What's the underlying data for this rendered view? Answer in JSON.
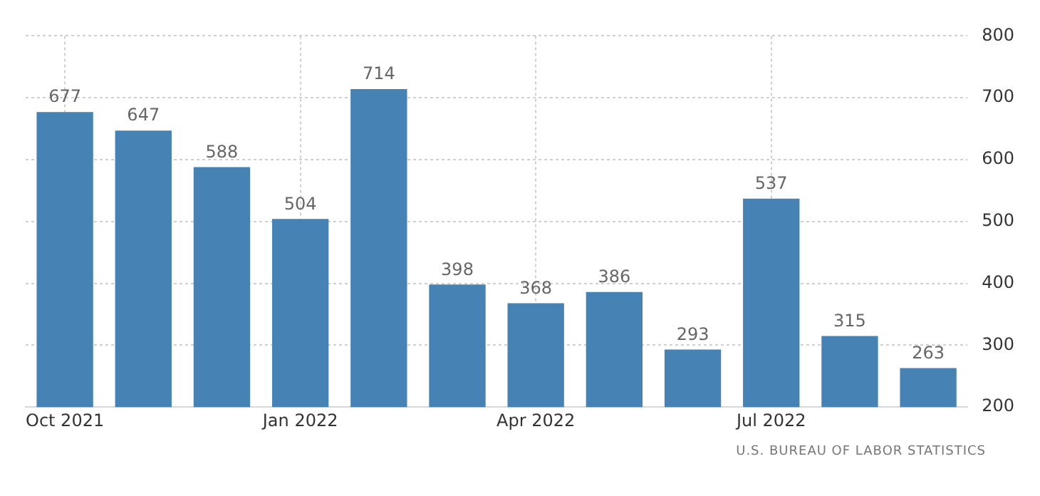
{
  "chart_data": {
    "type": "bar",
    "categories": [
      "Oct 2021",
      null,
      null,
      "Jan 2022",
      null,
      null,
      "Apr 2022",
      null,
      null,
      "Jul 2022",
      null,
      null
    ],
    "values": [
      677,
      647,
      588,
      504,
      714,
      398,
      368,
      386,
      293,
      537,
      315,
      263
    ],
    "color": "#4682b4",
    "ylim": [
      200,
      800
    ],
    "yticks": [
      200,
      300,
      400,
      500,
      600,
      700,
      800
    ],
    "grid": true,
    "data_labels": true,
    "legend": false,
    "annotations": [
      "U.S. BUREAU OF LABOR STATISTICS"
    ]
  }
}
